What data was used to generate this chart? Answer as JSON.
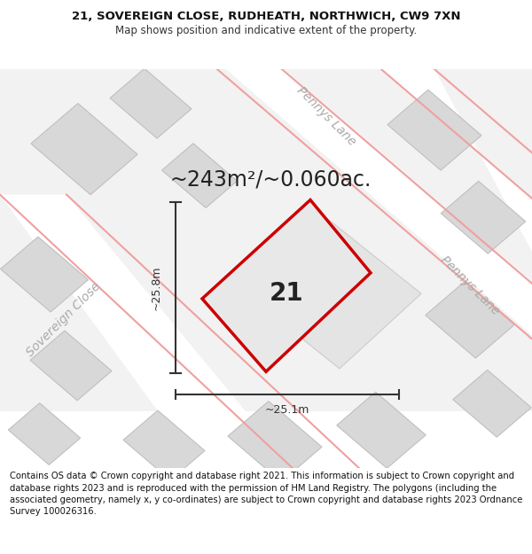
{
  "title_line1": "21, SOVEREIGN CLOSE, RUDHEATH, NORTHWICH, CW9 7XN",
  "title_line2": "Map shows position and indicative extent of the property.",
  "area_text": "~243m²/~0.060ac.",
  "plot_number": "21",
  "dim_vertical": "~25.8m",
  "dim_horizontal": "~25.1m",
  "footer_text": "Contains OS data © Crown copyright and database right 2021. This information is subject to Crown copyright and database rights 2023 and is reproduced with the permission of HM Land Registry. The polygons (including the associated geometry, namely x, y co-ordinates) are subject to Crown copyright and database rights 2023 Ordnance Survey 100026316.",
  "bg_color": "#ffffff",
  "map_bg": "#f0f0f0",
  "plot_fill": "#e8e8e8",
  "plot_edge": "#cc0000",
  "road_line_color": "#f0a0a0",
  "building_fill": "#d8d8d8",
  "building_edge": "#c0c0c0",
  "road_label_color": "#aaaaaa",
  "dim_color": "#333333",
  "title_fontsize": 9.5,
  "subtitle_fontsize": 8.5,
  "area_fontsize": 17,
  "plot_num_fontsize": 20,
  "dim_fontsize": 9,
  "road_label_fontsize": 10,
  "footer_fontsize": 7.2
}
